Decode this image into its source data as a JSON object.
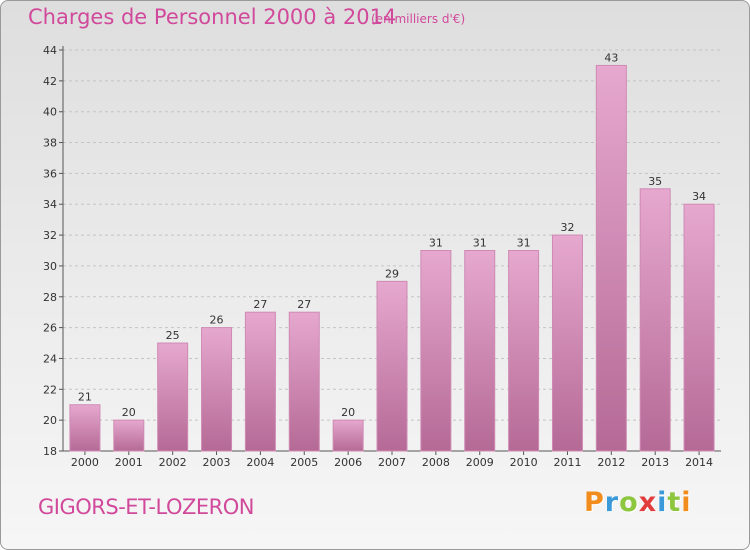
{
  "header": {
    "title": "Charges de Personnel 2000 à 2014",
    "subtitle": "(en milliers d'€)"
  },
  "footer": {
    "place": "GIGORS-ET-LOZERON",
    "logo_letters": [
      {
        "ch": "P",
        "color": "#f28c1c"
      },
      {
        "ch": "r",
        "color": "#3a9ad9"
      },
      {
        "ch": "o",
        "color": "#8dc63f"
      },
      {
        "ch": "x",
        "color": "#e23d3d"
      },
      {
        "ch": "i",
        "color": "#3a9ad9"
      },
      {
        "ch": "t",
        "color": "#8dc63f"
      },
      {
        "ch": "i",
        "color": "#f28c1c"
      }
    ]
  },
  "chart_data": {
    "type": "bar",
    "title": "Charges de Personnel 2000 à 2014",
    "subtitle": "(en milliers d'€)",
    "categories": [
      "2000",
      "2001",
      "2002",
      "2003",
      "2004",
      "2005",
      "2006",
      "2007",
      "2008",
      "2009",
      "2010",
      "2011",
      "2012",
      "2013",
      "2014"
    ],
    "values": [
      21,
      20,
      25,
      26,
      27,
      27,
      20,
      29,
      31,
      31,
      31,
      32,
      43,
      35,
      34
    ],
    "ylim": [
      18,
      44
    ],
    "yticks": [
      18,
      20,
      22,
      24,
      26,
      28,
      30,
      32,
      34,
      36,
      38,
      40,
      42,
      44
    ],
    "grid": true,
    "bar_color_top": "#e6a8cf",
    "bar_color_bottom": "#b56a96",
    "bar_edge": "#cf8ab4"
  }
}
